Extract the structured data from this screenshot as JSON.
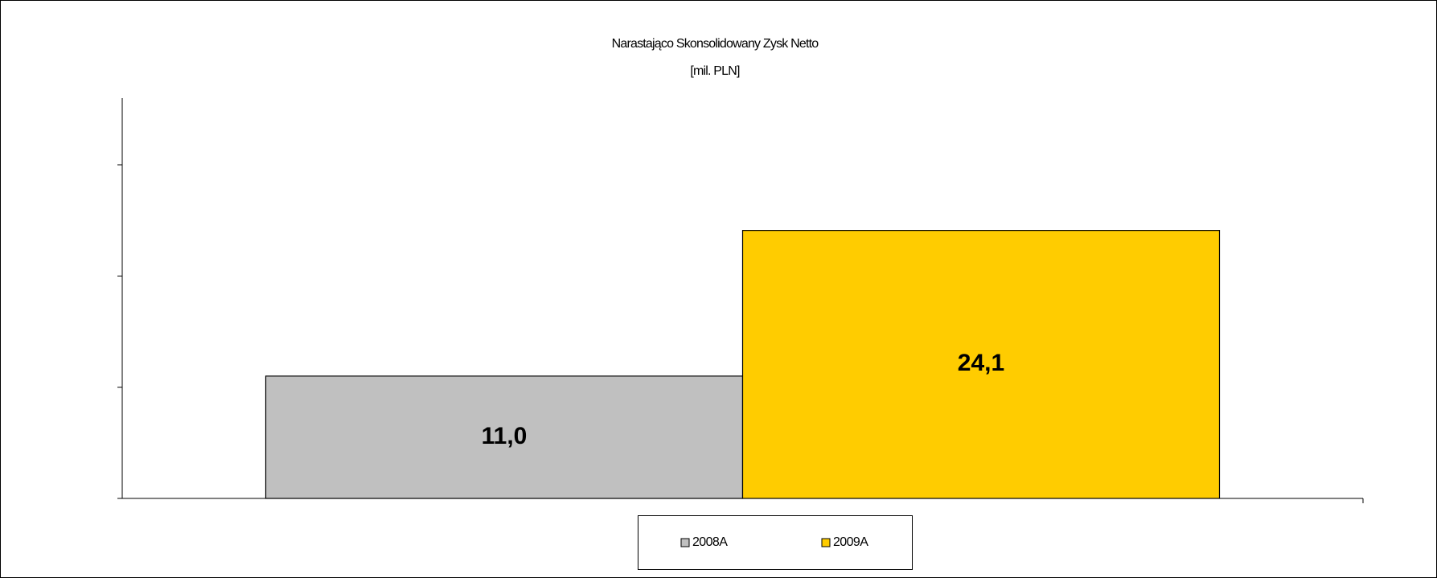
{
  "chart_data": {
    "type": "bar",
    "title": "Narastająco Skonsolidowany Zysk Netto",
    "subtitle": "[mil. PLN]",
    "categories": [
      null
    ],
    "series": [
      {
        "name": "2008A",
        "color": "#c0c0c0",
        "values": [
          11.0
        ],
        "value_labels": [
          "11,0"
        ]
      },
      {
        "name": "2009A",
        "color": "#ffcc00",
        "values": [
          24.1
        ],
        "value_labels": [
          "24,1"
        ]
      }
    ],
    "ylim": [
      0,
      36
    ],
    "yticks": [
      0,
      10,
      20,
      30
    ],
    "grid": false,
    "legend": "bottom"
  }
}
